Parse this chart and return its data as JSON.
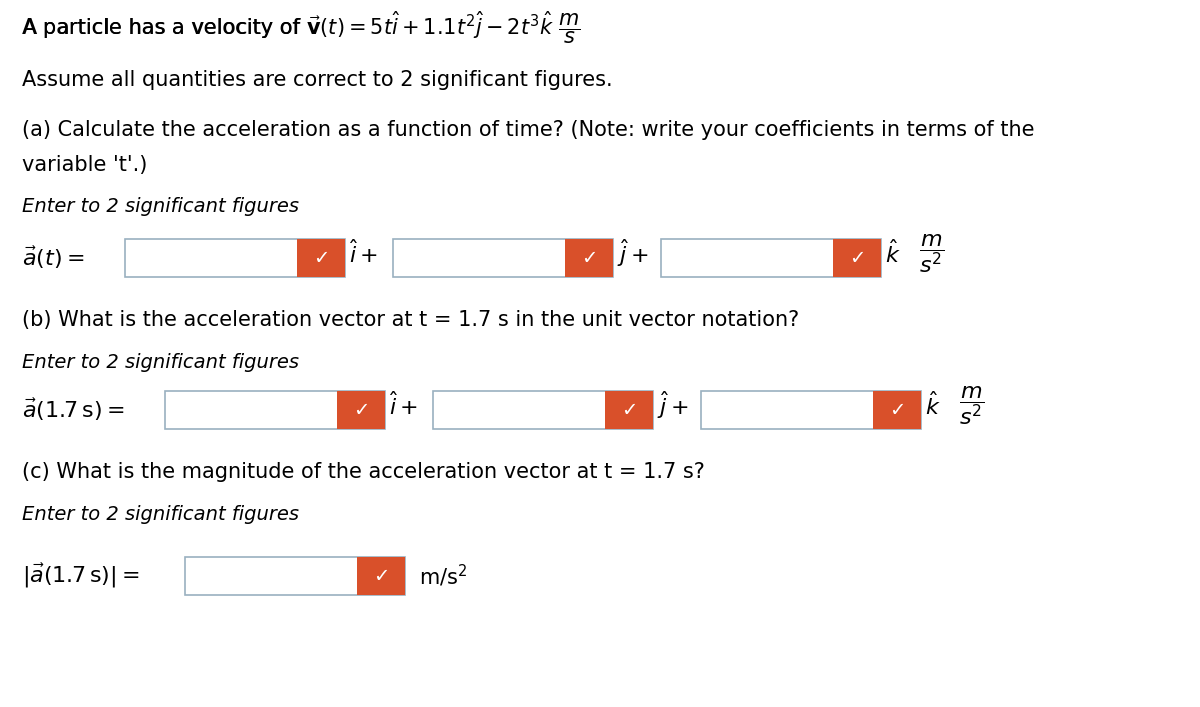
{
  "bg_color": "#ffffff",
  "check_color": "#d9502a",
  "box_edge_color": "#9ab0c0",
  "box_fill": "#ffffff",
  "text_color": "#000000",
  "title": "A particle has a velocity of ",
  "title_math": "$\\vec{v}(t) = 5t\\hat{i}+1.1t^{2}\\hat{j}-2t^{3}\\hat{k}$",
  "title_unit": "$\\dfrac{m}{s}$",
  "line2": "Assume all quantities are correct to 2 significant figures.",
  "line3a": "(a) Calculate the acceleration as a function of time? (Note: write your coefficients in terms of the",
  "line3b": "variable 't'.)",
  "enter": "Enter to 2 significant figures",
  "label_a": "$\\vec{a}(t) =$",
  "ihat": "$\\hat{i}+$",
  "jhat": "$\\hat{j}+$",
  "khat": "$\\hat{k}$",
  "unit_frac": "$\\dfrac{m}{s^2}$",
  "line_b": "(b) What is the acceleration vector at t = 1.7 s in the unit vector notation?",
  "label_b": "$\\vec{a}(1.7\\,\\mathrm{s}) =$",
  "line_c": "(c) What is the magnitude of the acceleration vector at t = 1.7 s?",
  "label_c": "$|\\vec{a}(1.7\\,\\mathrm{s})| =$",
  "unit_c": "m/s$^{2}$",
  "fs_main": 15,
  "fs_italic": 14,
  "fs_label": 16,
  "fs_math": 15,
  "fs_check": 14
}
